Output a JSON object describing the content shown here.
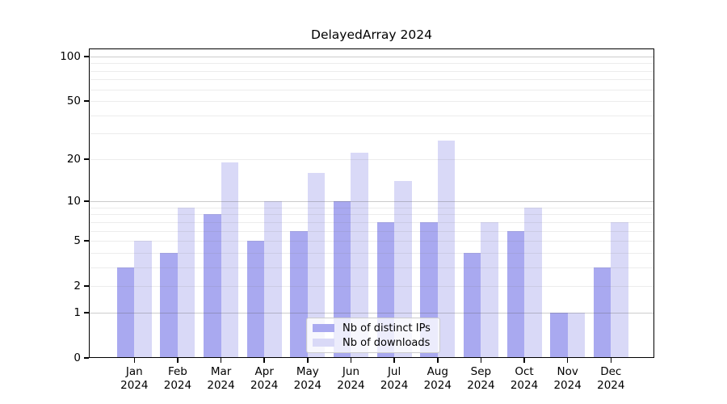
{
  "title": "DelayedArray 2024",
  "chart_data": {
    "type": "bar",
    "title": "DelayedArray 2024",
    "categories": [
      "Jan 2024",
      "Feb 2024",
      "Mar 2024",
      "Apr 2024",
      "May 2024",
      "Jun 2024",
      "Jul 2024",
      "Aug 2024",
      "Sep 2024",
      "Oct 2024",
      "Nov 2024",
      "Dec 2024"
    ],
    "series": [
      {
        "name": "Nb of distinct IPs",
        "color": "#a9a9f0",
        "values": [
          3,
          4,
          8,
          5,
          6,
          10,
          7,
          7,
          4,
          6,
          1,
          3
        ]
      },
      {
        "name": "Nb of downloads",
        "color": "#d9d9f7",
        "values": [
          5,
          9,
          19,
          10,
          16,
          22,
          14,
          27,
          7,
          9,
          1,
          7
        ]
      }
    ],
    "xlabel": "",
    "ylabel": "",
    "scale": "log1p",
    "ylim": [
      0,
      113
    ],
    "yticks": [
      0,
      1,
      2,
      5,
      10,
      20,
      50,
      100
    ],
    "minor_gridlines": [
      2,
      3,
      4,
      5,
      6,
      7,
      8,
      9,
      20,
      30,
      40,
      50,
      60,
      70,
      80,
      90
    ],
    "major_gridlines": [
      1,
      10,
      100
    ],
    "grid": "on",
    "legend_position": "bottom-center"
  },
  "colors": {
    "distinct_ips": "#a9a9f0",
    "downloads": "#d9d9f7",
    "axis": "#000000",
    "background": "#ffffff"
  }
}
